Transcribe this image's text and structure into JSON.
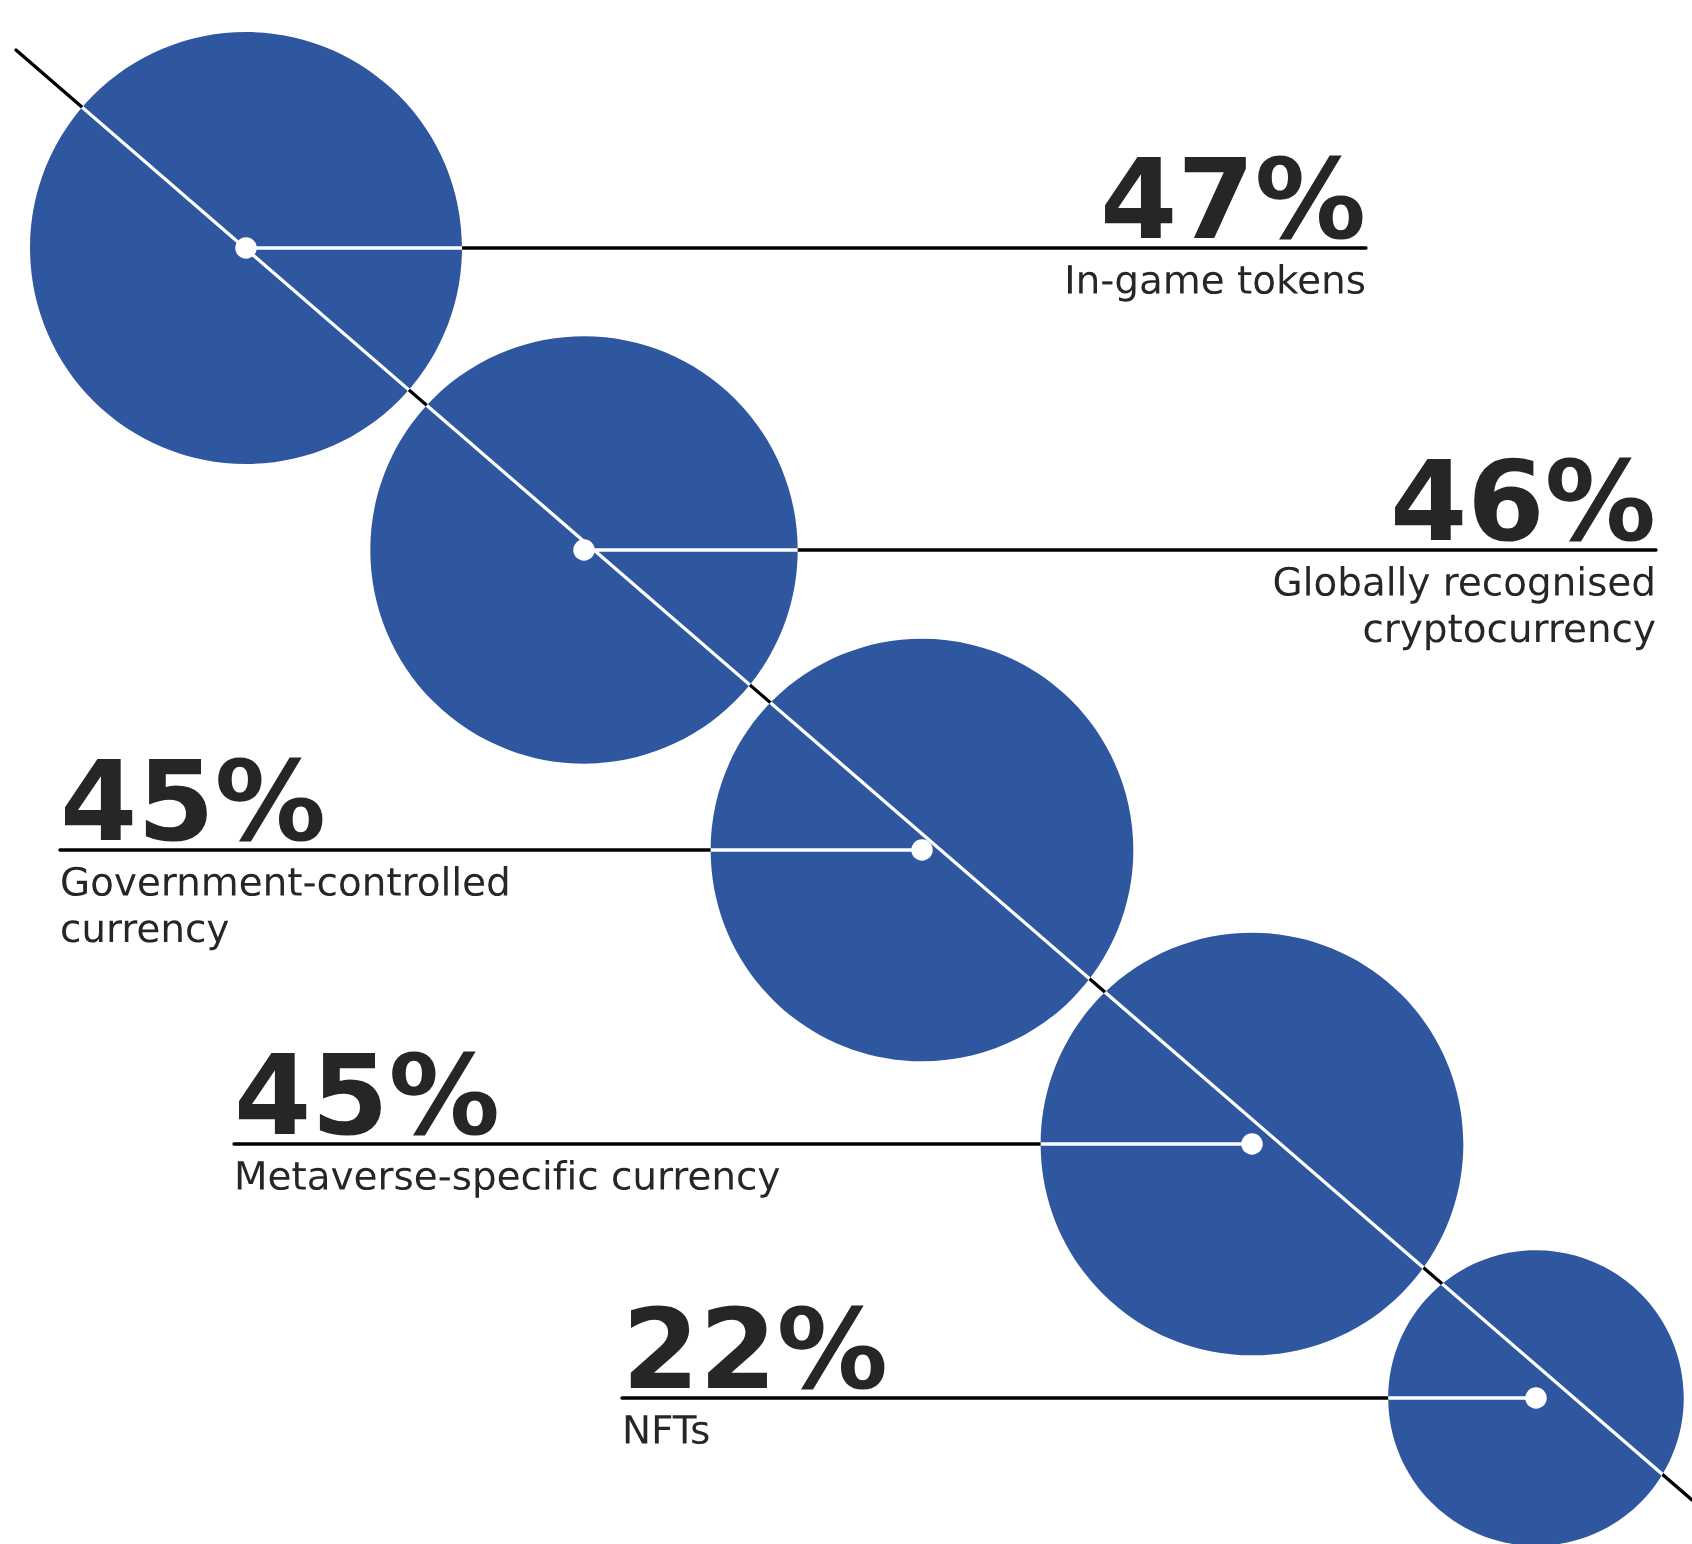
{
  "chart_data": {
    "type": "other",
    "categories": [
      "In-game tokens",
      "Globally recognised\ncryptocurrency",
      "Government-controlled\ncurrency",
      "Metaverse-specific currency",
      "NFTs"
    ],
    "values": [
      47,
      46,
      45,
      45,
      22
    ],
    "value_labels": [
      "47%",
      "46%",
      "45%",
      "45%",
      "22%"
    ],
    "color": "#2e57a0"
  }
}
